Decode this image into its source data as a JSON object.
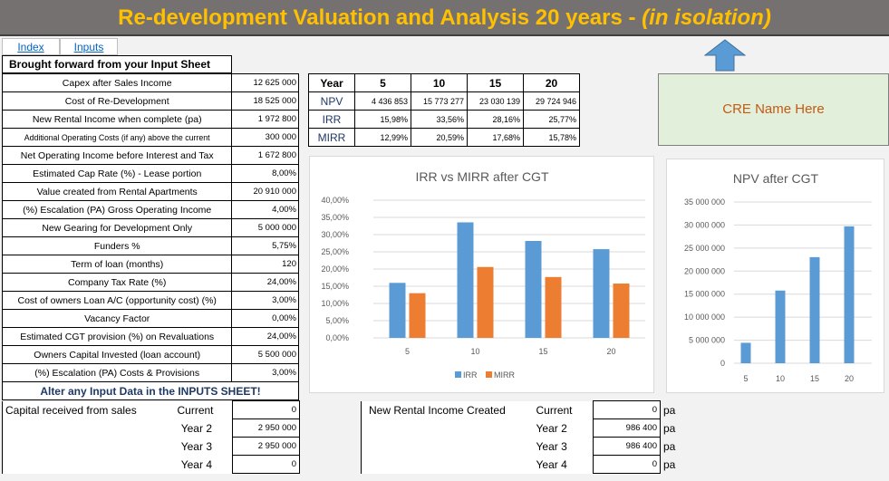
{
  "title": {
    "main": "Re-development Valuation and Analysis 20 years - ",
    "italic": "(in isolation)"
  },
  "links": {
    "index": "Index",
    "inputs": "Inputs"
  },
  "input_section": {
    "header": "Brought forward from your Input Sheet",
    "rows": [
      {
        "label": "Capex after Sales Income",
        "value": "12 625 000"
      },
      {
        "label": "Cost of Re-Development",
        "value": "18 525 000"
      },
      {
        "label": "New Rental Income when complete (pa)",
        "value": "1 972 800"
      },
      {
        "label": "Additional Operating Costs (if any) above the current",
        "value": "300 000"
      },
      {
        "label": "Net Operating Income before Interest and Tax",
        "value": "1 672 800"
      },
      {
        "label": "Estimated Cap Rate (%) - Lease portion",
        "value": "8,00%"
      },
      {
        "label": "Value created from Rental Apartments",
        "value": "20 910 000"
      },
      {
        "label": "(%) Escalation (PA) Gross Operating Income",
        "value": "4,00%"
      },
      {
        "label": "New Gearing for Development Only",
        "value": "5 000 000"
      },
      {
        "label": "Funders %",
        "value": "5,75%"
      },
      {
        "label": "Term of loan (months)",
        "value": "120"
      },
      {
        "label": "Company Tax Rate (%)",
        "value": "24,00%"
      },
      {
        "label": "Cost of owners Loan A/C (opportunity cost) (%)",
        "value": "3,00%"
      },
      {
        "label": "Vacancy Factor",
        "value": "0,00%"
      },
      {
        "label": "Estimated CGT provision (%) on Revaluations",
        "value": "24,00%"
      },
      {
        "label": "Owners Capital Invested (loan account)",
        "value": "5 500 000"
      },
      {
        "label": "(%) Escalation (PA) Costs & Provisions",
        "value": "3,00%"
      }
    ],
    "alter_note": "Alter any Input Data in the INPUTS SHEET!"
  },
  "year_table": {
    "header_label": "Year",
    "years": [
      "5",
      "10",
      "15",
      "20"
    ],
    "rows": [
      {
        "label": "NPV",
        "values": [
          "4 436 853",
          "15 773 277",
          "23 030 139",
          "29 724 946"
        ]
      },
      {
        "label": "IRR",
        "values": [
          "15,98%",
          "33,56%",
          "28,16%",
          "25,77%"
        ]
      },
      {
        "label": "MIRR",
        "values": [
          "12,99%",
          "20,59%",
          "17,68%",
          "15,78%"
        ]
      }
    ]
  },
  "cre_name": "CRE Name Here",
  "capital_section": {
    "label": "Capital received from sales",
    "rows": [
      {
        "period": "Current",
        "value": "0"
      },
      {
        "period": "Year 2",
        "value": "2 950 000"
      },
      {
        "period": "Year 3",
        "value": "2 950 000"
      },
      {
        "period": "Year 4",
        "value": "0"
      }
    ]
  },
  "rental_section": {
    "label": "New Rental Income Created",
    "unit": "pa",
    "rows": [
      {
        "period": "Current",
        "value": "0"
      },
      {
        "period": "Year 2",
        "value": "986 400"
      },
      {
        "period": "Year 3",
        "value": "986 400"
      },
      {
        "period": "Year 4",
        "value": "0"
      }
    ]
  },
  "colors": {
    "irr": "#5b9bd5",
    "mirr": "#ed7d31",
    "npv": "#5b9bd5",
    "title_bg": "#767171",
    "title_fg": "#ffc000",
    "arrow": "#5b9bd5"
  },
  "icons": {
    "up_arrow": "up-arrow-icon"
  },
  "chart_data": [
    {
      "type": "bar",
      "title": "IRR vs MIRR after CGT",
      "categories": [
        "5",
        "10",
        "15",
        "20"
      ],
      "series": [
        {
          "name": "IRR",
          "values": [
            15.98,
            33.56,
            28.16,
            25.77
          ]
        },
        {
          "name": "MIRR",
          "values": [
            12.99,
            20.59,
            17.68,
            15.78
          ]
        }
      ],
      "yticks": [
        "0,00%",
        "5,00%",
        "10,00%",
        "15,00%",
        "20,00%",
        "25,00%",
        "30,00%",
        "35,00%",
        "40,00%"
      ],
      "ylim": [
        0,
        40
      ],
      "legend": "bottom",
      "grid": true
    },
    {
      "type": "bar",
      "title": "NPV after CGT",
      "categories": [
        "5",
        "10",
        "15",
        "20"
      ],
      "values": [
        4436853,
        15773277,
        23030139,
        29724946
      ],
      "yticks": [
        "0",
        "5 000 000",
        "10 000 000",
        "15 000 000",
        "20 000 000",
        "25 000 000",
        "30 000 000",
        "35 000 000"
      ],
      "ylim": [
        0,
        35000000
      ],
      "grid": true
    }
  ]
}
